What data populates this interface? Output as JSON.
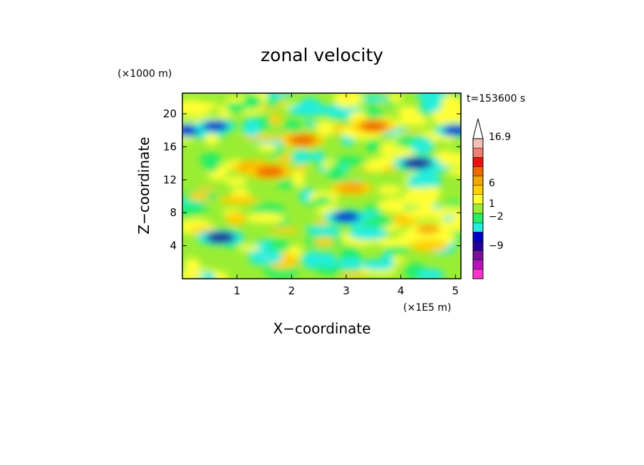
{
  "chart_data": {
    "type": "heatmap",
    "title": "zonal velocity",
    "xlabel": "X−coordinate",
    "ylabel": "Z−coordinate",
    "x_unit": "(×1E5 m)",
    "y_unit": "(×1000 m)",
    "time_label": "t=153600 s",
    "xlim": [
      0,
      5.1
    ],
    "ylim": [
      0,
      22.5
    ],
    "x_ticks": [
      1,
      2,
      3,
      4,
      5
    ],
    "x_tick_labels": [
      "1",
      "2",
      "3",
      "4",
      "5"
    ],
    "y_ticks": [
      4,
      8,
      12,
      16,
      20
    ],
    "y_tick_labels": [
      "4",
      "8",
      "12",
      "16",
      "20"
    ],
    "colorbar": {
      "labels": [
        "16.9",
        "6",
        "1",
        "−2",
        "−9"
      ],
      "colors_top_to_bottom": [
        "#f5c0b8",
        "#ee7f73",
        "#ee1111",
        "#ee6a00",
        "#f6a500",
        "#ffd000",
        "#ffff33",
        "#99ee33",
        "#22ee66",
        "#22eedd",
        "#0000cc",
        "#220099",
        "#771199",
        "#bb11bb",
        "#ff33cc"
      ]
    },
    "features": [
      {
        "x": 0.1,
        "z": 18.0,
        "value": -5
      },
      {
        "x": 0.6,
        "z": 18.5,
        "value": -4
      },
      {
        "x": 1.3,
        "z": 13.5,
        "value": 4
      },
      {
        "x": 1.6,
        "z": 13.0,
        "value": 6
      },
      {
        "x": 2.2,
        "z": 16.8,
        "value": 5
      },
      {
        "x": 2.3,
        "z": 20.5,
        "value": -3
      },
      {
        "x": 3.5,
        "z": 18.5,
        "value": 5
      },
      {
        "x": 4.3,
        "z": 14.0,
        "value": -6
      },
      {
        "x": 5.0,
        "z": 18.0,
        "value": -4
      },
      {
        "x": 2.6,
        "z": 4.5,
        "value": 2
      },
      {
        "x": 3.1,
        "z": 11.0,
        "value": 4
      },
      {
        "x": 3.0,
        "z": 7.5,
        "value": -5
      },
      {
        "x": 3.4,
        "z": 5.5,
        "value": -3
      },
      {
        "x": 0.7,
        "z": 5.0,
        "value": -6
      },
      {
        "x": 4.5,
        "z": 6.0,
        "value": 3
      },
      {
        "x": 0.3,
        "z": 10.0,
        "value": 2
      }
    ]
  }
}
